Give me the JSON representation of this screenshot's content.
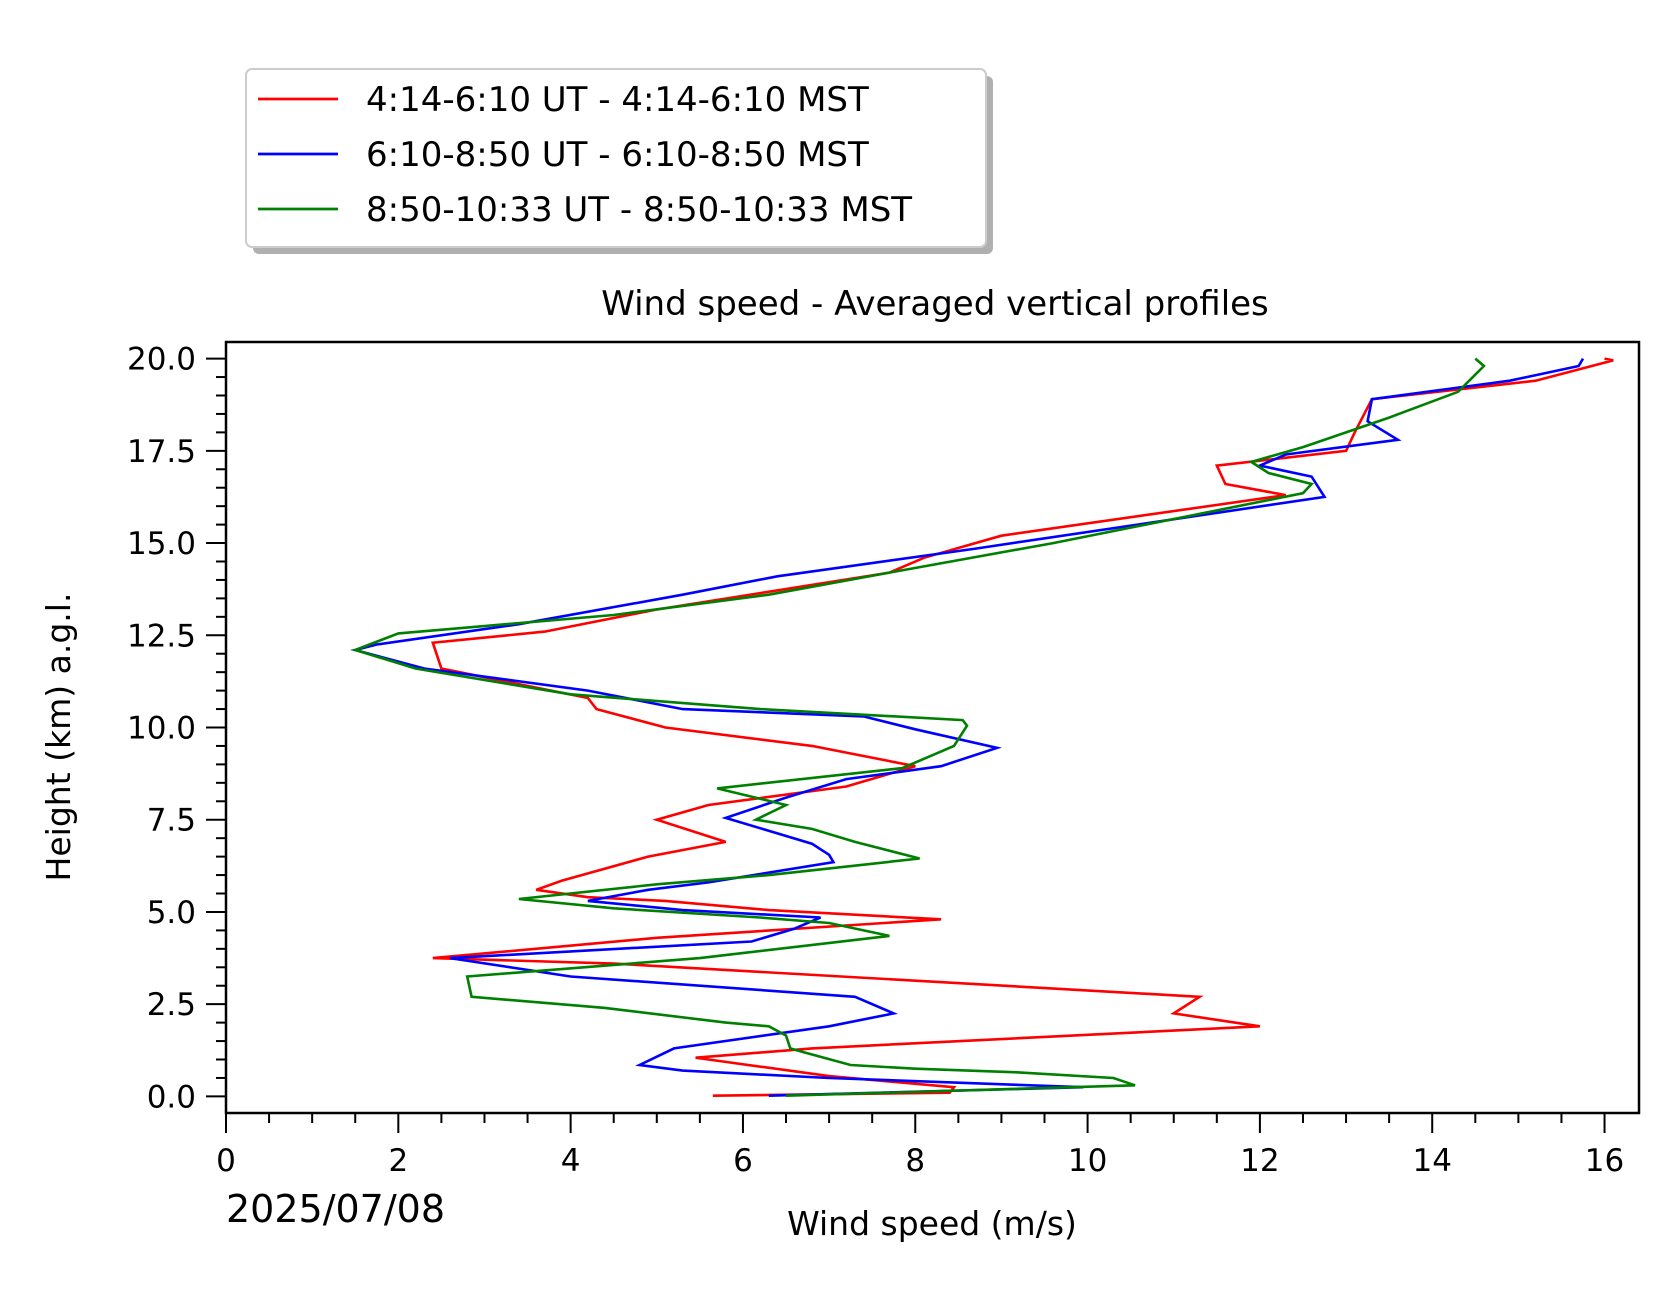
{
  "chart_data": {
    "type": "line",
    "orientation": "vertical-profile",
    "title": "Wind speed - Averaged vertical profiles",
    "xlabel": "Wind speed (m/s)",
    "ylabel": "Height (km) a.g.l.",
    "date_label": "2025/07/08",
    "xlim": [
      0,
      16.4
    ],
    "ylim": [
      -0.45,
      20.45
    ],
    "x_ticks": [
      "0",
      "2",
      "4",
      "6",
      "8",
      "10",
      "12",
      "14",
      "16"
    ],
    "y_ticks": [
      "0.0",
      "2.5",
      "5.0",
      "7.5",
      "10.0",
      "12.5",
      "15.0",
      "17.5",
      "20.0"
    ],
    "grid": false,
    "legend_position": "upper-left-outside",
    "series": [
      {
        "name": "4:14-6:10 UT - 4:14-6:10 MST",
        "color": "#ff0000",
        "points": [
          [
            5.65,
            0.02
          ],
          [
            8.4,
            0.1
          ],
          [
            8.45,
            0.25
          ],
          [
            7.0,
            0.55
          ],
          [
            5.6,
            1.0
          ],
          [
            5.45,
            1.05
          ],
          [
            6.8,
            1.3
          ],
          [
            12.0,
            1.9
          ],
          [
            11.0,
            2.25
          ],
          [
            11.3,
            2.7
          ],
          [
            4.5,
            3.6
          ],
          [
            2.4,
            3.75
          ],
          [
            5.0,
            4.3
          ],
          [
            8.3,
            4.8
          ],
          [
            6.3,
            5.05
          ],
          [
            5.1,
            5.3
          ],
          [
            4.2,
            5.4
          ],
          [
            3.6,
            5.6
          ],
          [
            3.9,
            5.85
          ],
          [
            4.9,
            6.5
          ],
          [
            5.8,
            6.9
          ],
          [
            5.0,
            7.5
          ],
          [
            5.6,
            7.9
          ],
          [
            7.2,
            8.4
          ],
          [
            8.0,
            8.95
          ],
          [
            6.8,
            9.5
          ],
          [
            5.1,
            10.0
          ],
          [
            4.3,
            10.5
          ],
          [
            4.2,
            10.8
          ],
          [
            2.5,
            11.6
          ],
          [
            2.4,
            12.3
          ],
          [
            3.7,
            12.6
          ],
          [
            5.0,
            13.2
          ],
          [
            7.7,
            14.2
          ],
          [
            8.1,
            14.6
          ],
          [
            9.0,
            15.2
          ],
          [
            12.3,
            16.3
          ],
          [
            11.6,
            16.6
          ],
          [
            11.5,
            17.1
          ],
          [
            13.0,
            17.5
          ],
          [
            13.1,
            18.0
          ],
          [
            13.3,
            18.9
          ],
          [
            15.2,
            19.4
          ],
          [
            16.1,
            19.95
          ],
          [
            16.0,
            20.0
          ]
        ]
      },
      {
        "name": "6:10-8:50 UT - 6:10-8:50 MST",
        "color": "#0000ff",
        "points": [
          [
            6.3,
            0.02
          ],
          [
            9.95,
            0.25
          ],
          [
            7.0,
            0.5
          ],
          [
            5.3,
            0.7
          ],
          [
            4.8,
            0.85
          ],
          [
            5.2,
            1.3
          ],
          [
            7.0,
            1.9
          ],
          [
            7.75,
            2.25
          ],
          [
            7.3,
            2.7
          ],
          [
            4.0,
            3.25
          ],
          [
            2.6,
            3.75
          ],
          [
            6.1,
            4.2
          ],
          [
            6.6,
            4.55
          ],
          [
            6.8,
            4.75
          ],
          [
            6.9,
            4.85
          ],
          [
            5.3,
            5.05
          ],
          [
            4.2,
            5.3
          ],
          [
            4.9,
            5.6
          ],
          [
            5.6,
            5.8
          ],
          [
            7.05,
            6.35
          ],
          [
            7.0,
            6.55
          ],
          [
            6.8,
            6.85
          ],
          [
            5.8,
            7.55
          ],
          [
            6.5,
            8.1
          ],
          [
            7.2,
            8.6
          ],
          [
            8.3,
            8.95
          ],
          [
            8.95,
            9.45
          ],
          [
            8.0,
            9.95
          ],
          [
            7.4,
            10.3
          ],
          [
            5.3,
            10.5
          ],
          [
            4.2,
            11.0
          ],
          [
            2.3,
            11.6
          ],
          [
            1.5,
            12.1
          ],
          [
            1.75,
            12.25
          ],
          [
            3.4,
            12.8
          ],
          [
            5.3,
            13.6
          ],
          [
            6.4,
            14.1
          ],
          [
            8.7,
            14.85
          ],
          [
            12.75,
            16.25
          ],
          [
            12.6,
            16.8
          ],
          [
            12.0,
            17.1
          ],
          [
            12.3,
            17.4
          ],
          [
            13.6,
            17.8
          ],
          [
            13.25,
            18.3
          ],
          [
            13.3,
            18.9
          ],
          [
            14.9,
            19.4
          ],
          [
            15.7,
            19.8
          ],
          [
            15.75,
            20.0
          ]
        ]
      },
      {
        "name": "8:50-10:33 UT - 8:50-10:33 MST",
        "color": "#008000",
        "points": [
          [
            6.5,
            0.02
          ],
          [
            10.55,
            0.3
          ],
          [
            10.3,
            0.5
          ],
          [
            9.2,
            0.65
          ],
          [
            8.0,
            0.75
          ],
          [
            7.25,
            0.85
          ],
          [
            6.7,
            1.2
          ],
          [
            6.55,
            1.3
          ],
          [
            6.5,
            1.65
          ],
          [
            6.3,
            1.9
          ],
          [
            5.8,
            2.0
          ],
          [
            4.4,
            2.4
          ],
          [
            2.85,
            2.7
          ],
          [
            2.8,
            3.25
          ],
          [
            5.5,
            3.75
          ],
          [
            7.7,
            4.35
          ],
          [
            7.0,
            4.7
          ],
          [
            6.2,
            4.85
          ],
          [
            4.5,
            5.1
          ],
          [
            3.4,
            5.35
          ],
          [
            5.0,
            5.75
          ],
          [
            6.3,
            6.0
          ],
          [
            8.05,
            6.45
          ],
          [
            7.3,
            6.9
          ],
          [
            6.8,
            7.25
          ],
          [
            6.15,
            7.5
          ],
          [
            6.5,
            7.9
          ],
          [
            5.7,
            8.35
          ],
          [
            7.85,
            8.9
          ],
          [
            8.45,
            9.5
          ],
          [
            8.6,
            10.05
          ],
          [
            8.55,
            10.2
          ],
          [
            6.2,
            10.5
          ],
          [
            4.0,
            10.9
          ],
          [
            2.2,
            11.6
          ],
          [
            1.5,
            12.1
          ],
          [
            2.0,
            12.55
          ],
          [
            4.5,
            13.05
          ],
          [
            6.3,
            13.6
          ],
          [
            7.7,
            14.2
          ],
          [
            9.6,
            15.0
          ],
          [
            12.5,
            16.35
          ],
          [
            12.6,
            16.6
          ],
          [
            12.1,
            16.9
          ],
          [
            11.9,
            17.2
          ],
          [
            12.5,
            17.6
          ],
          [
            13.5,
            18.4
          ],
          [
            14.3,
            19.1
          ],
          [
            14.6,
            19.8
          ],
          [
            14.5,
            20.0
          ]
        ]
      }
    ]
  }
}
